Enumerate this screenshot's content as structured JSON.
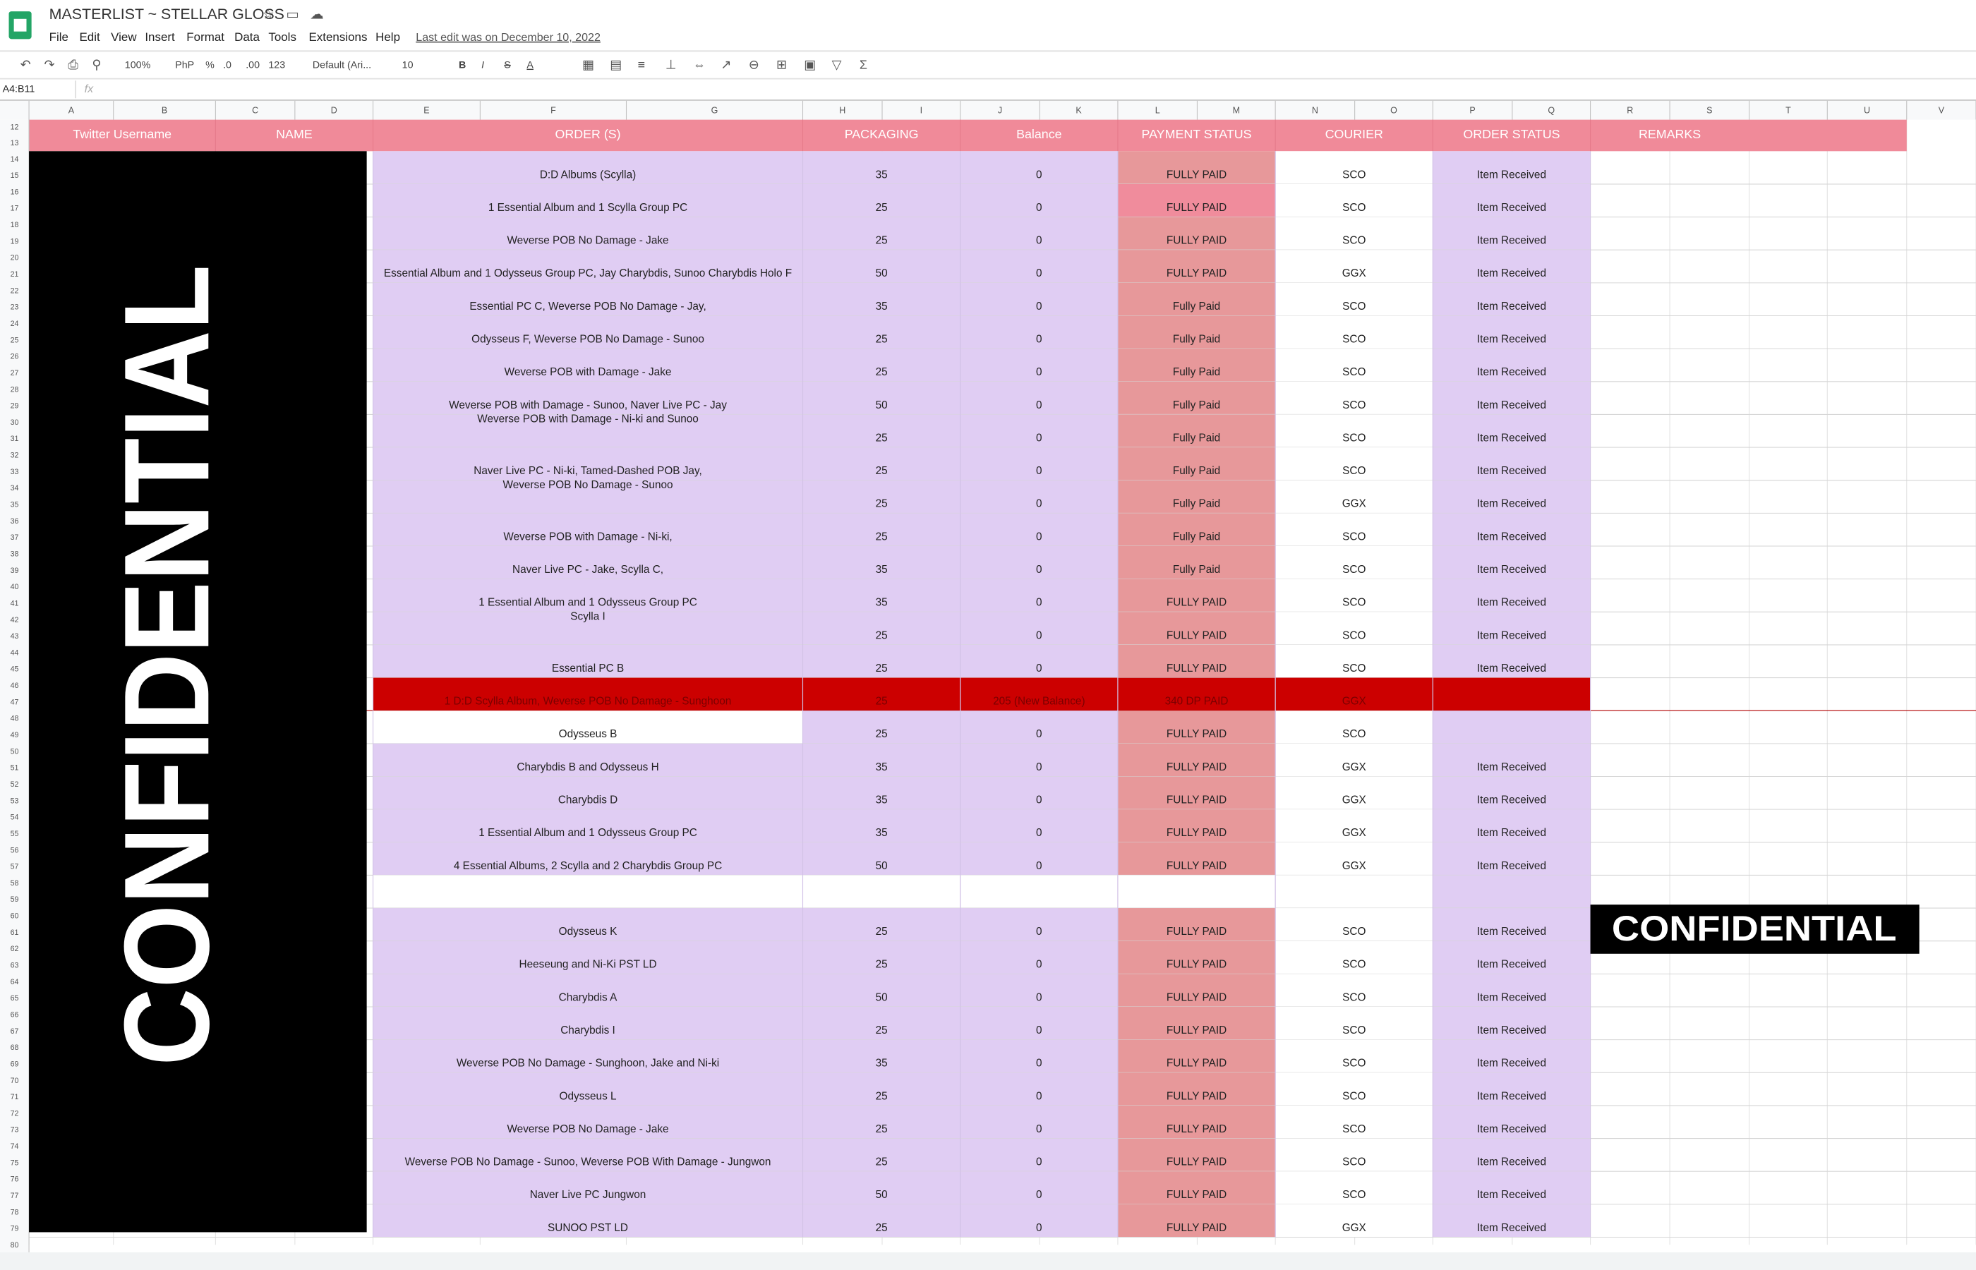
{
  "header": {
    "title": "MASTERLIST ~ STELLAR GLOSS",
    "menu": [
      "File",
      "Edit",
      "View",
      "Insert",
      "Format",
      "Data",
      "Tools",
      "Extensions",
      "Help"
    ],
    "last_edit": "Last edit was on December 10, 2022"
  },
  "toolbar": {
    "zoom": "100%",
    "currency": "PhP",
    "percent": "%",
    "decrease_decimal": ".0",
    "increase_decimal": ".00",
    "number_format": "123",
    "font": "Default (Ari...",
    "font_size": "10",
    "bold": "B",
    "italic": "I",
    "strikethrough": "S",
    "text_color": "A"
  },
  "formula_bar": {
    "name_box": "A4:B11",
    "fx": "fx"
  },
  "columns": [
    "A",
    "B",
    "C",
    "D",
    "E",
    "F",
    "G",
    "H",
    "I",
    "J",
    "K",
    "L",
    "M",
    "N",
    "O",
    "P",
    "Q",
    "R",
    "S",
    "T",
    "U",
    "V"
  ],
  "row_numbers": [
    12,
    13,
    14,
    15,
    16,
    17,
    18,
    19,
    20,
    21,
    22,
    23,
    24,
    25,
    26,
    27,
    28,
    29,
    30,
    31,
    32,
    33,
    34,
    35,
    36,
    37,
    38,
    39,
    40,
    41,
    42,
    43,
    44,
    45,
    46,
    47,
    48,
    49,
    50,
    51,
    52,
    53,
    54,
    55,
    56,
    57,
    58,
    59,
    60,
    61,
    62,
    63,
    64,
    65,
    66,
    67,
    68,
    69,
    70,
    71,
    72,
    73,
    74,
    75,
    76,
    77,
    78,
    79,
    80
  ],
  "table": {
    "headers": [
      "Twitter Username",
      "NAME",
      "ORDER (S)",
      "PACKAGING",
      "Balance",
      "PAYMENT STATUS",
      "COURIER",
      "ORDER STATUS",
      "REMARKS"
    ],
    "rows": [
      [
        "D:D Albums (Scylla)",
        35,
        0,
        "FULLY PAID",
        "SCO",
        "Item Received"
      ],
      [
        "1 Essential Album and 1 Scylla Group PC",
        25,
        0,
        "FULLY PAID",
        "SCO",
        "Item Received"
      ],
      [
        "Weverse POB No Damage - Jake",
        25,
        0,
        "FULLY PAID",
        "SCO",
        "Item Received"
      ],
      [
        "Essential Album and 1 Odysseus Group PC, Jay Charybdis, Sunoo Charybdis Holo F",
        50,
        0,
        "FULLY PAID",
        "GGX",
        "Item Received"
      ],
      [
        "Essential PC C, Weverse POB No Damage - Jay,",
        35,
        0,
        "Fully Paid",
        "SCO",
        "Item Received"
      ],
      [
        "Odysseus F, Weverse POB No Damage - Sunoo",
        25,
        0,
        "Fully Paid",
        "SCO",
        "Item Received"
      ],
      [
        "Weverse POB with Damage - Jake",
        25,
        0,
        "Fully Paid",
        "SCO",
        "Item Received"
      ],
      [
        "Weverse POB with Damage - Sunoo, Naver Live PC - Jay",
        50,
        0,
        "Fully Paid",
        "SCO",
        "Item Received"
      ],
      [
        "Weverse POB with Damage - Ni-ki and Sunoo",
        25,
        0,
        "Fully Paid",
        "SCO",
        "Item Received"
      ],
      [
        "Naver Live PC - Ni-ki, Tamed-Dashed POB Jay,",
        25,
        0,
        "Fully Paid",
        "SCO",
        "Item Received"
      ],
      [
        "Weverse POB No Damage - Sunoo",
        25,
        0,
        "Fully Paid",
        "GGX",
        "Item Received"
      ],
      [
        "Weverse POB with Damage - Ni-ki,",
        25,
        0,
        "Fully Paid",
        "SCO",
        "Item Received"
      ],
      [
        "Naver Live PC - Jake, Scylla C,",
        35,
        0,
        "Fully Paid",
        "SCO",
        "Item Received"
      ],
      [
        "1 Essential Album and 1 Odysseus Group PC",
        35,
        0,
        "FULLY PAID",
        "SCO",
        "Item Received"
      ],
      [
        "Scylla I",
        25,
        0,
        "FULLY PAID",
        "SCO",
        "Item Received"
      ],
      [
        "Essential PC B",
        25,
        0,
        "FULLY PAID",
        "SCO",
        "Item Received"
      ],
      [
        "1 D:D Scylla Album, Weverse POB No Damage - Sunghoon",
        25,
        "205 (New Balance)",
        "340 DP PAID",
        "GGX",
        null
      ],
      [
        "Odysseus B",
        25,
        0,
        "FULLY PAID",
        "SCO",
        null
      ],
      [
        "Charybdis B and Odysseus H",
        35,
        0,
        "FULLY PAID",
        "GGX",
        "Item Received"
      ],
      [
        "Charybdis D",
        35,
        0,
        "FULLY PAID",
        "GGX",
        "Item Received"
      ],
      [
        "1 Essential Album and 1 Odysseus Group PC",
        35,
        0,
        "FULLY PAID",
        "GGX",
        "Item Received"
      ],
      [
        "4 Essential Albums, 2 Scylla and 2 Charybdis Group PC",
        50,
        0,
        "FULLY PAID",
        "GGX",
        "Item Received"
      ],
      [
        null,
        null,
        null,
        null,
        null,
        null
      ],
      [
        "Odysseus K",
        25,
        0,
        "FULLY PAID",
        "SCO",
        "Item Received"
      ],
      [
        "Heeseung and Ni-Ki PST LD",
        25,
        0,
        "FULLY PAID",
        "SCO",
        "Item Received"
      ],
      [
        "Charybdis A",
        50,
        0,
        "FULLY PAID",
        "SCO",
        "Item Received"
      ],
      [
        "Charybdis I",
        25,
        0,
        "FULLY PAID",
        "SCO",
        "Item Received"
      ],
      [
        "Weverse POB No Damage - Sunghoon, Jake and Ni-ki",
        35,
        0,
        "FULLY PAID",
        "SCO",
        "Item Received"
      ],
      [
        "Odysseus L",
        25,
        0,
        "FULLY PAID",
        "SCO",
        "Item Received"
      ],
      [
        "Weverse POB No Damage - Jake",
        25,
        0,
        "FULLY PAID",
        "SCO",
        "Item Received"
      ],
      [
        "Weverse POB No Damage - Sunoo, Weverse POB With Damage - Jungwon",
        25,
        0,
        "FULLY PAID",
        "SCO",
        "Item Received"
      ],
      [
        "Naver Live PC Jungwon",
        50,
        0,
        "FULLY PAID",
        "SCO",
        "Item Received"
      ],
      [
        "SUNOO PST LD",
        25,
        0,
        "FULLY PAID",
        "GGX",
        "Item Received"
      ]
    ]
  },
  "overlays": [
    "CONFIDENTIAL",
    "CONFIDENTIAL"
  ]
}
